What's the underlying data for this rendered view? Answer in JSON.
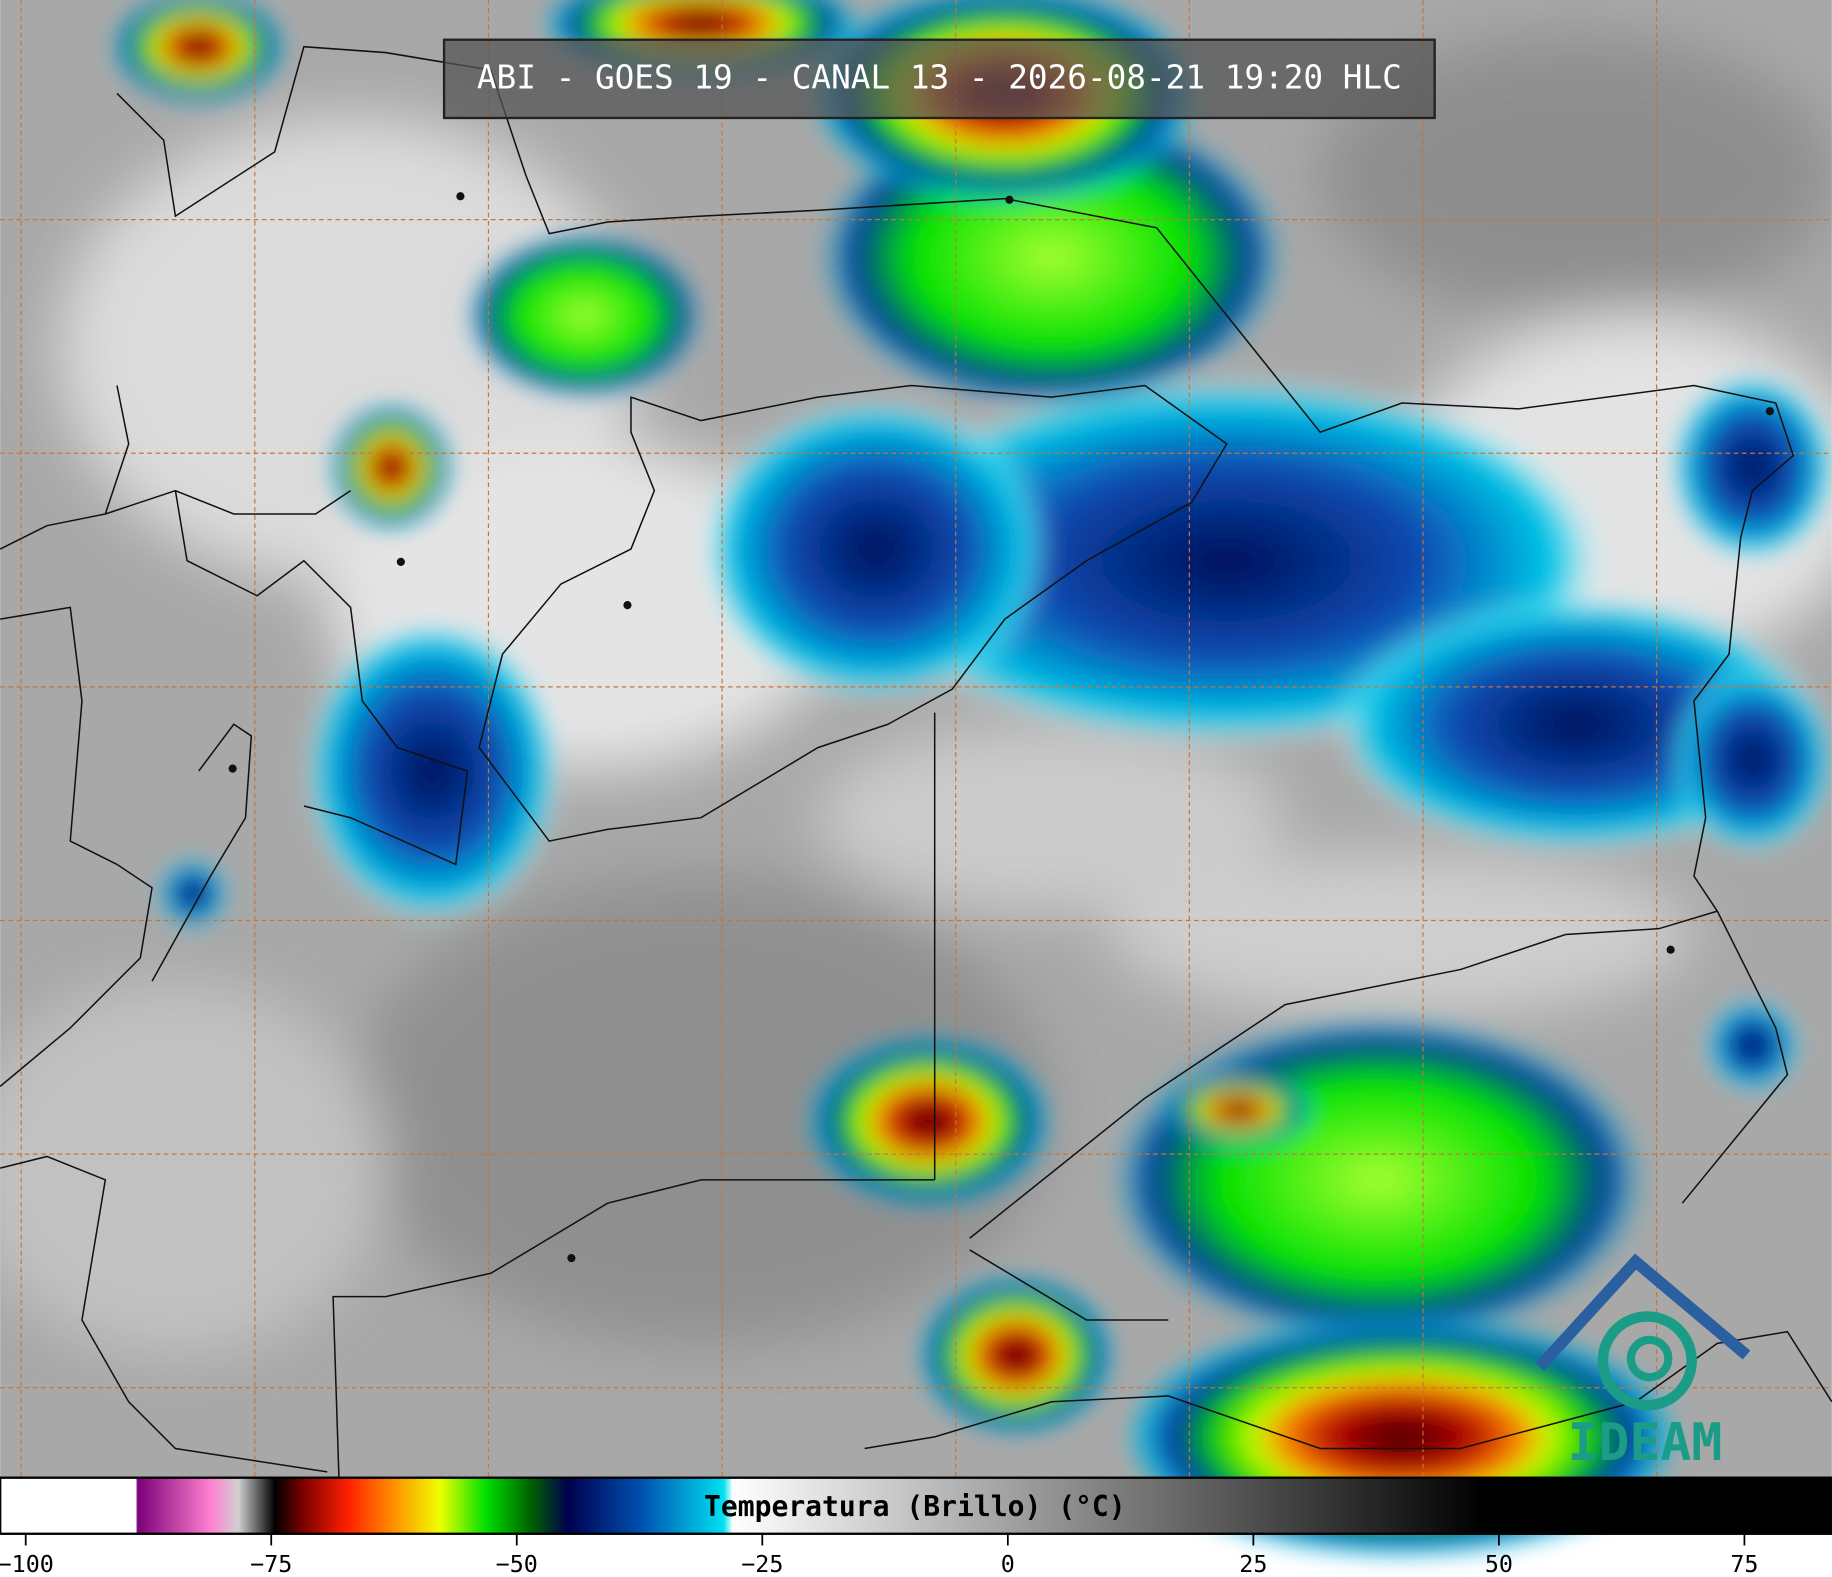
{
  "header": {
    "title": "ABI - GOES 19 - CANAL 13 - 2026-08-21 19:20 HLC"
  },
  "logo": {
    "text": "IDEAM"
  },
  "colorbar": {
    "label": "Temperatura (Brillo) (°C)",
    "lim": [
      -102.6,
      83.9
    ],
    "ticks": [
      {
        "value": -100,
        "label": "−100"
      },
      {
        "value": -75,
        "label": "−75"
      },
      {
        "value": -50,
        "label": "−50"
      },
      {
        "value": -25,
        "label": "−25"
      },
      0,
      25,
      50,
      75
    ]
  }
}
